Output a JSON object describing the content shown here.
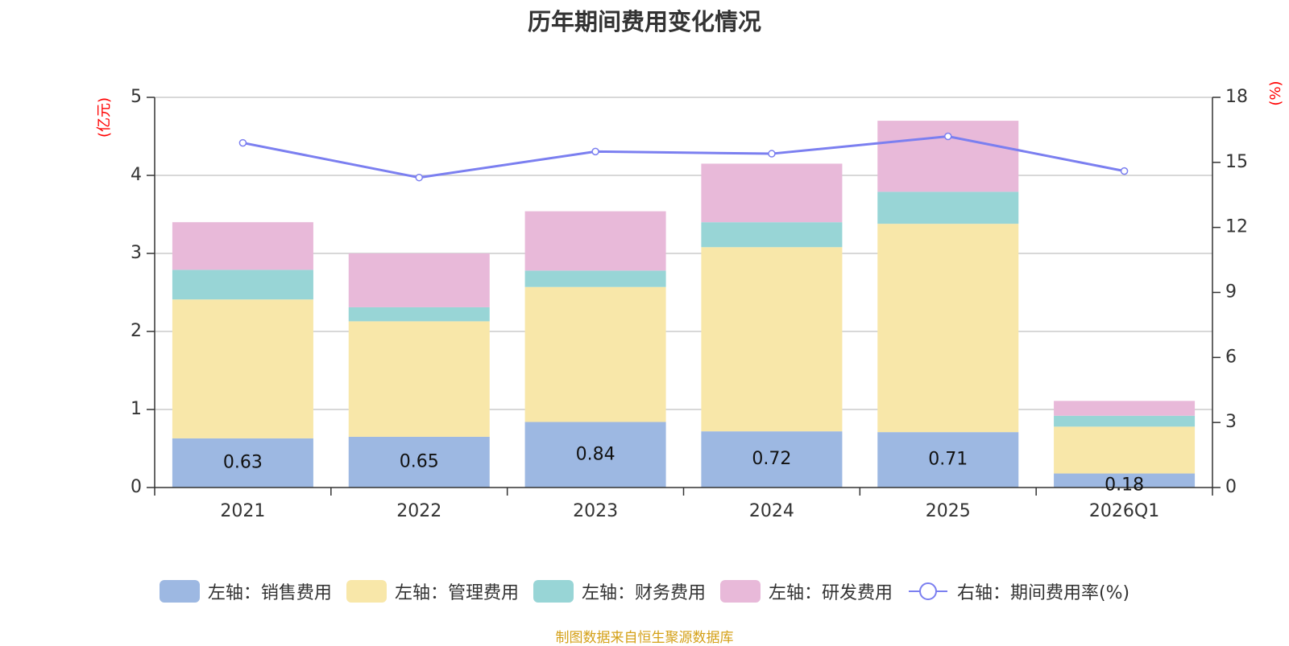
{
  "chart_data": {
    "type": "bar",
    "title": "历年期间费用变化情况",
    "categories": [
      "2021",
      "2022",
      "2023",
      "2024",
      "2025",
      "2026Q1"
    ],
    "left_axis": {
      "unit_label": "(亿元)",
      "ylim": [
        0,
        5
      ],
      "ticks": [
        "0",
        "1",
        "2",
        "3",
        "4",
        "5"
      ]
    },
    "right_axis": {
      "unit_label": "(%)",
      "ylim": [
        0,
        18
      ],
      "ticks": [
        "0",
        "3",
        "6",
        "9",
        "12",
        "15",
        "18"
      ]
    },
    "series": [
      {
        "name": "左轴：销售费用",
        "axis": "left",
        "stack": true,
        "color": "#9db8e2",
        "values": [
          0.63,
          0.65,
          0.84,
          0.72,
          0.71,
          0.18
        ],
        "labels": [
          "0.63",
          "0.65",
          "0.84",
          "0.72",
          "0.71",
          "0.18"
        ]
      },
      {
        "name": "左轴：管理费用",
        "axis": "left",
        "stack": true,
        "color": "#f8e7a9",
        "values": [
          1.78,
          1.48,
          1.73,
          2.36,
          2.67,
          0.6
        ]
      },
      {
        "name": "左轴：财务费用",
        "axis": "left",
        "stack": true,
        "color": "#98d5d6",
        "values": [
          0.38,
          0.18,
          0.21,
          0.32,
          0.41,
          0.14
        ]
      },
      {
        "name": "左轴：研发费用",
        "axis": "left",
        "stack": true,
        "color": "#e8b9d9",
        "values": [
          0.61,
          0.69,
          0.76,
          0.75,
          0.91,
          0.19
        ]
      },
      {
        "name": "右轴：期间费用率(%)",
        "axis": "right",
        "type": "line",
        "color": "#7b7ff0",
        "values": [
          15.9,
          14.3,
          15.5,
          15.4,
          16.2,
          14.6
        ]
      }
    ],
    "grid": true,
    "legend_position": "bottom"
  },
  "footer": {
    "source": "制图数据来自恒生聚源数据库"
  }
}
